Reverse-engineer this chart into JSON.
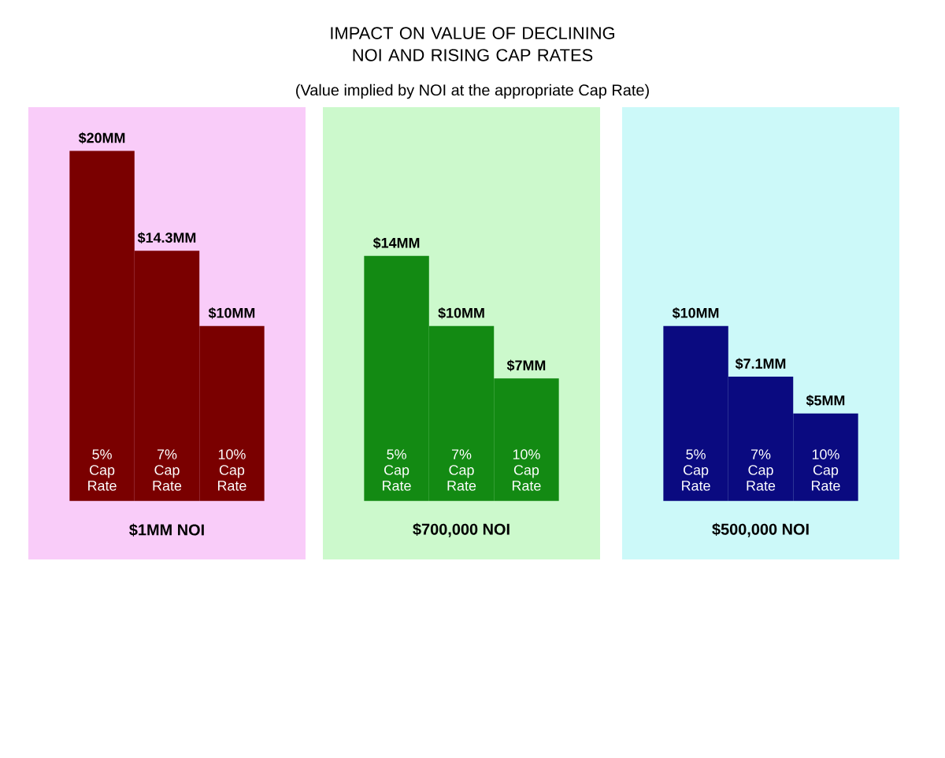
{
  "chart_data": [
    {
      "type": "bar",
      "xlabel": "$1MM NOI",
      "categories": [
        "5% Cap Rate",
        "7% Cap Rate",
        "10% Cap Rate"
      ],
      "values": [
        20,
        14.3,
        10
      ],
      "value_labels": [
        "$20MM",
        "$14.3MM",
        "$10MM"
      ],
      "color": "#7a0000"
    },
    {
      "type": "bar",
      "title": "IMPACT ON VALUE OF DECLINING NOI AND RISING CAP RATES",
      "subtitle": "(Value implied by NOI at the appropriate Cap Rate)",
      "xlabel": "$700,000 NOI",
      "categories": [
        "5% Cap Rate",
        "7% Cap Rate",
        "10% Cap Rate"
      ],
      "values": [
        14,
        10,
        7
      ],
      "value_labels": [
        "$14MM",
        "$10MM",
        "$7MM"
      ],
      "color": "#138a13"
    },
    {
      "type": "bar",
      "xlabel": "$500,000 NOI",
      "categories": [
        "5% Cap Rate",
        "7% Cap Rate",
        "10% Cap Rate"
      ],
      "values": [
        10,
        7.1,
        5
      ],
      "value_labels": [
        "$10MM",
        "$7.1MM",
        "$5MM"
      ],
      "color": "#0a0a80"
    }
  ]
}
